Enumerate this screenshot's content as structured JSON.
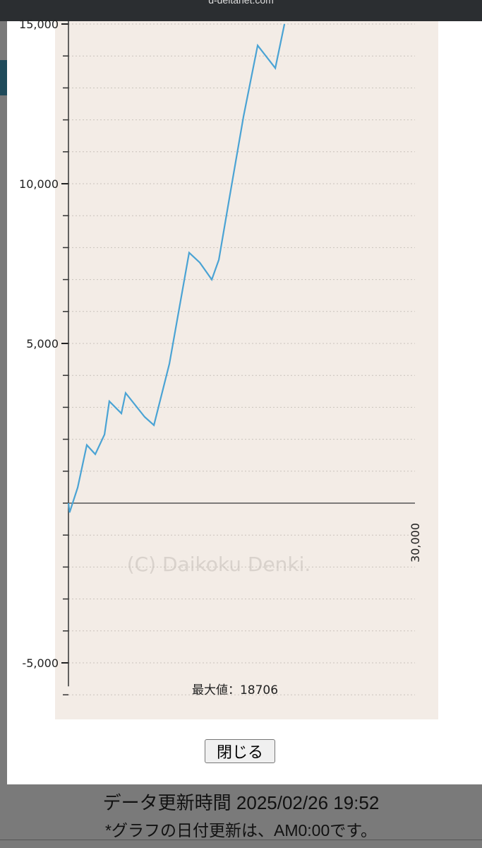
{
  "browser": {
    "url": "d-deltanet.com"
  },
  "chart_data": {
    "type": "line",
    "watermark": "(C) Daikoku Denki.",
    "annotation": "最大値：18706",
    "xlim": [
      0,
      30000
    ],
    "xticks": [
      {
        "value": 30000,
        "label": "30,000"
      }
    ],
    "ylim": [
      -6000,
      15000
    ],
    "yticks": [
      {
        "value": 15000,
        "label": "15,000"
      },
      {
        "value": 10000,
        "label": "10,000"
      },
      {
        "value": 5000,
        "label": "5,000"
      },
      {
        "value": -5000,
        "label": "-5,000"
      }
    ],
    "yminorticks": [
      -6000,
      -5000,
      -4000,
      -3000,
      -2000,
      -1000,
      0,
      1000,
      2000,
      3000,
      4000,
      5000,
      6000,
      7000,
      8000,
      9000,
      10000,
      11000,
      12000,
      13000,
      14000,
      15000
    ],
    "grid": true,
    "series": [
      {
        "color": "#4aa3d4",
        "x": [
          0,
          100,
          800,
          1590,
          2320,
          3120,
          3540,
          4580,
          4950,
          6600,
          7400,
          8740,
          10450,
          11370,
          12410,
          13020,
          13940,
          15160,
          16380,
          17910,
          18700
        ],
        "values": [
          0,
          -290,
          490,
          1820,
          1530,
          2150,
          3190,
          2810,
          3450,
          2700,
          2440,
          4360,
          7840,
          7530,
          7000,
          7620,
          9570,
          12110,
          14330,
          13620,
          15000
        ]
      }
    ]
  },
  "button": {
    "label": "閉じる"
  },
  "footer": {
    "updated": "データ更新時間 2025/02/26 19:52",
    "note": "*グラフの日付更新は、AM0:00です。"
  }
}
